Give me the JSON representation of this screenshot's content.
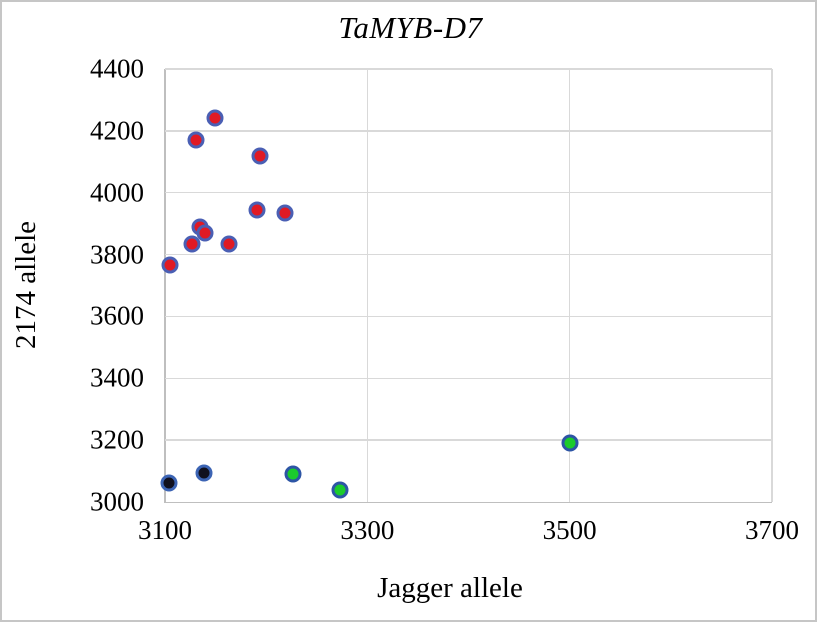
{
  "figure": {
    "border_color": "#c6c6c6",
    "background": "#ffffff"
  },
  "chart_data": {
    "type": "scatter",
    "title": "TaMYB-D7",
    "xlabel": "Jagger allele",
    "ylabel": "2174 allele",
    "xlim": [
      3100,
      3700
    ],
    "ylim": [
      3000,
      4400
    ],
    "x_ticks": [
      3100,
      3300,
      3500,
      3700
    ],
    "y_ticks": [
      3000,
      3200,
      3400,
      3600,
      3800,
      4000,
      4200,
      4400
    ],
    "grid": true,
    "legend": "none",
    "colors": {
      "gridline": "#d9d9d9",
      "axis_line": "#bfbfbf",
      "text": "#000000"
    },
    "series": [
      {
        "name": "red-markers",
        "fill": "#e01a24",
        "stroke": "#4a5fb4",
        "points": [
          [
            3149,
            4240
          ],
          [
            3131,
            4172
          ],
          [
            3194,
            4118
          ],
          [
            3191,
            3945
          ],
          [
            3219,
            3936
          ],
          [
            3135,
            3890
          ],
          [
            3140,
            3871
          ],
          [
            3127,
            3835
          ],
          [
            3163,
            3833
          ],
          [
            3105,
            3765
          ]
        ]
      },
      {
        "name": "dark-markers",
        "fill": "#10101e",
        "stroke": "#3c64b4",
        "points": [
          [
            3104,
            3062
          ],
          [
            3139,
            3094
          ]
        ]
      },
      {
        "name": "green-markers",
        "fill": "#1bcb2c",
        "stroke": "#2d55a5",
        "points": [
          [
            3227,
            3090
          ],
          [
            3273,
            3038
          ],
          [
            3500,
            3192
          ]
        ]
      }
    ]
  }
}
